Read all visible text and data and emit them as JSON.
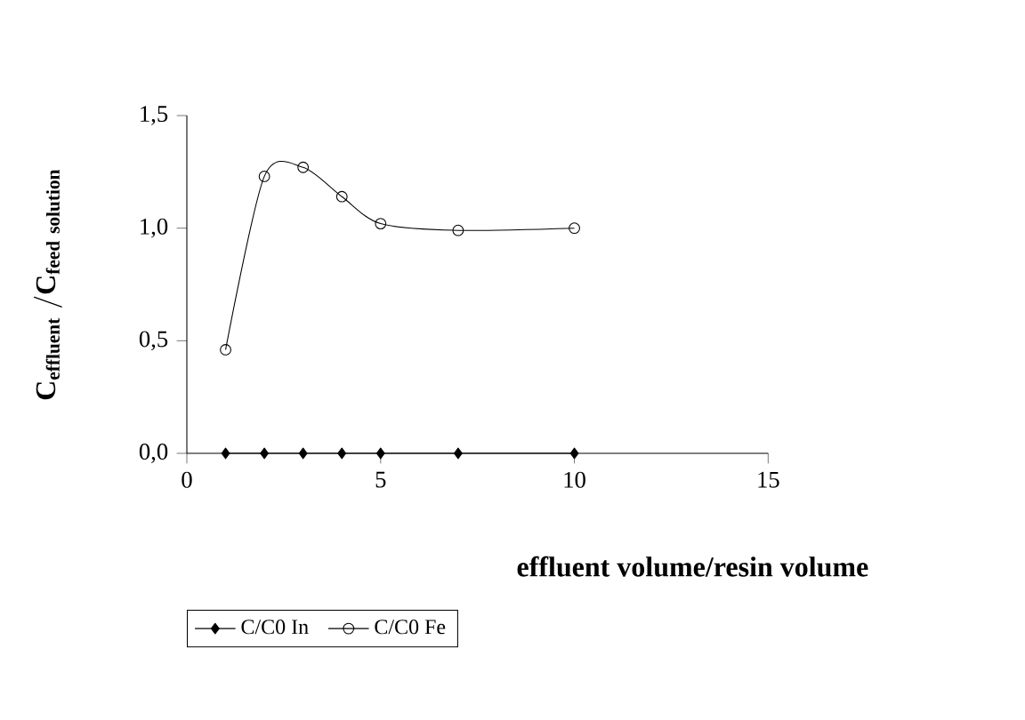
{
  "chart_data": {
    "type": "line",
    "xlabel": "effluent volume/resin volume",
    "ylabel": "\\mathbf{C_{effluent}\\;/C_{feed\\ solution}}",
    "xlim": [
      0,
      15
    ],
    "xticks": [
      0,
      5,
      10,
      15
    ],
    "ylim": [
      0,
      1.5
    ],
    "yticks": [
      {
        "value": 0,
        "label": "0,0"
      },
      {
        "value": 0.5,
        "label": "0,5"
      },
      {
        "value": 1,
        "label": "1,0"
      },
      {
        "value": 1.5,
        "label": "1,5"
      }
    ],
    "legend": "bottom",
    "grid": false,
    "series": [
      {
        "name": "C/C0 In",
        "color": "#000000",
        "marker": "diamond",
        "x": [
          1,
          2,
          3,
          4,
          5,
          7,
          10
        ],
        "values": [
          0,
          0,
          0,
          0,
          0,
          0,
          0
        ]
      },
      {
        "name": "C/C0 Fe",
        "color": "#000000",
        "marker": "circle",
        "x": [
          1,
          2,
          3,
          4,
          5,
          7,
          10
        ],
        "values": [
          0.46,
          1.23,
          1.27,
          1.14,
          1.02,
          0.99,
          1.0
        ]
      }
    ]
  }
}
